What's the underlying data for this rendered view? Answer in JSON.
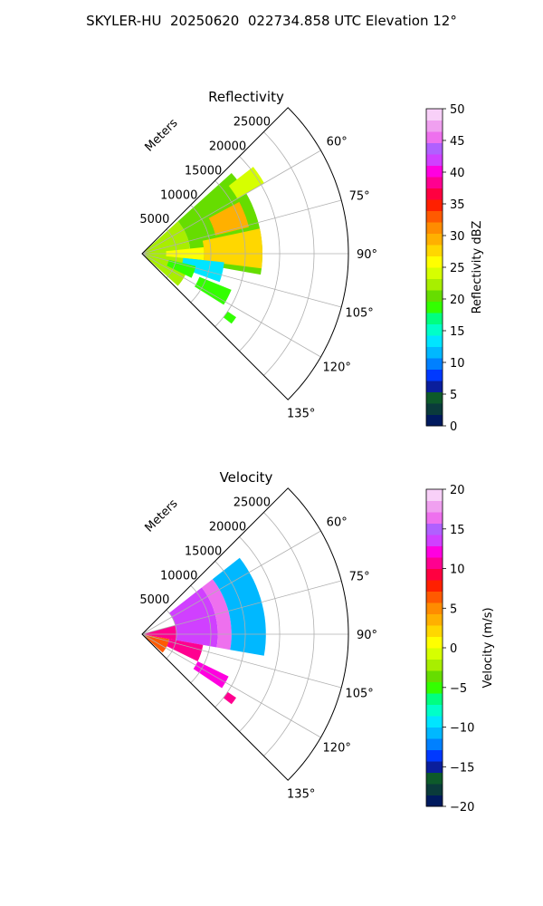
{
  "figure_title": "SKYLER-HU  20250620  022734.858 UTC Elevation 12°",
  "chart_data": [
    {
      "type": "heatmap",
      "projection": "polar-sector",
      "title": "Reflectivity",
      "range_label": "Meters",
      "r_ticks": [
        "5000",
        "10000",
        "15000",
        "20000",
        "25000"
      ],
      "r_tick_values": [
        5000,
        10000,
        15000,
        20000,
        25000
      ],
      "r_max": 30000,
      "theta_ticks": [
        "60°",
        "75°",
        "90°",
        "105°",
        "120°",
        "135°"
      ],
      "theta_tick_values": [
        60,
        75,
        90,
        105,
        120,
        135
      ],
      "theta_range": [
        45,
        135
      ],
      "grid": true,
      "colorbar": {
        "label": "Reflectivity dBZ",
        "ticks": [
          "0",
          "5",
          "10",
          "15",
          "20",
          "25",
          "30",
          "35",
          "40",
          "45",
          "50"
        ],
        "tick_values": [
          0,
          5,
          10,
          15,
          20,
          25,
          30,
          35,
          40,
          45,
          50
        ],
        "range": [
          0,
          50
        ],
        "colors": [
          "#001a5e",
          "#0a3b3b",
          "#0d5a2a",
          "#0a1e9c",
          "#0039ff",
          "#0080ff",
          "#00b8ff",
          "#00e5ff",
          "#00ffc8",
          "#00ff80",
          "#33ff00",
          "#66dd00",
          "#a8ee00",
          "#d6ff00",
          "#ffff00",
          "#ffd700",
          "#ffb000",
          "#ff8c00",
          "#ff5a00",
          "#ff2000",
          "#ff0040",
          "#ff0090",
          "#ff00e0",
          "#d040ff",
          "#b060ff",
          "#ee70ee",
          "#f0a0f0",
          "#f8d0f8"
        ]
      },
      "echo_regions": [
        {
          "theta": [
            48,
            132
          ],
          "r": [
            0,
            7000
          ],
          "value": 22
        },
        {
          "theta": [
            48,
            100
          ],
          "r": [
            7000,
            17500
          ],
          "value": 20
        },
        {
          "theta": [
            52,
            60
          ],
          "r": [
            16000,
            20500
          ],
          "value": 24
        },
        {
          "theta": [
            62,
            76
          ],
          "r": [
            11000,
            16000
          ],
          "value": 29
        },
        {
          "theta": [
            78,
            97
          ],
          "r": [
            9000,
            17500
          ],
          "value": 27
        },
        {
          "theta": [
            84,
            96
          ],
          "r": [
            3500,
            9000
          ],
          "value": 25
        },
        {
          "theta": [
            96,
            110
          ],
          "r": [
            6000,
            12000
          ],
          "value": 13
        },
        {
          "theta": [
            103,
            116
          ],
          "r": [
            4000,
            8000
          ],
          "value": 19
        },
        {
          "theta": [
            112,
            122
          ],
          "r": [
            9000,
            14000
          ],
          "value": 18
        },
        {
          "theta": [
            124,
            128
          ],
          "r": [
            15000,
            16500
          ],
          "value": 18
        }
      ]
    },
    {
      "type": "heatmap",
      "projection": "polar-sector",
      "title": "Velocity",
      "range_label": "Meters",
      "r_ticks": [
        "5000",
        "10000",
        "15000",
        "20000",
        "25000"
      ],
      "r_tick_values": [
        5000,
        10000,
        15000,
        20000,
        25000
      ],
      "r_max": 30000,
      "theta_ticks": [
        "60°",
        "75°",
        "90°",
        "105°",
        "120°",
        "135°"
      ],
      "theta_tick_values": [
        60,
        75,
        90,
        105,
        120,
        135
      ],
      "theta_range": [
        45,
        135
      ],
      "grid": true,
      "colorbar": {
        "label": "Velocity (m/s)",
        "ticks": [
          "−20",
          "−15",
          "−10",
          "−5",
          "0",
          "5",
          "10",
          "15",
          "20"
        ],
        "tick_values": [
          -20,
          -15,
          -10,
          -5,
          0,
          5,
          10,
          15,
          20
        ],
        "range": [
          -20,
          20
        ],
        "colors": [
          "#001a5e",
          "#0a3b3b",
          "#0d5a2a",
          "#0a1e9c",
          "#0039ff",
          "#0080ff",
          "#00b8ff",
          "#00e5ff",
          "#00ffc8",
          "#00ff80",
          "#33ff00",
          "#66dd00",
          "#a8ee00",
          "#d6ff00",
          "#ffff00",
          "#ffd700",
          "#ffb000",
          "#ff8c00",
          "#ff5a00",
          "#ff2000",
          "#ff0040",
          "#ff0090",
          "#ff00e0",
          "#d040ff",
          "#b060ff",
          "#ee70ee",
          "#f0a0f0",
          "#f8d0f8"
        ]
      },
      "echo_regions": [
        {
          "theta": [
            100,
            132
          ],
          "r": [
            0,
            4000
          ],
          "value": 7
        },
        {
          "theta": [
            75,
            100
          ],
          "r": [
            0,
            5000
          ],
          "value": 10
        },
        {
          "theta": [
            52,
            100
          ],
          "r": [
            5000,
            11000
          ],
          "value": 14
        },
        {
          "theta": [
            52,
            100
          ],
          "r": [
            11000,
            13000
          ],
          "value": 16
        },
        {
          "theta": [
            52,
            100
          ],
          "r": [
            13000,
            18000
          ],
          "value": -11
        },
        {
          "theta": [
            100,
            116
          ],
          "r": [
            4000,
            9000
          ],
          "value": 11
        },
        {
          "theta": [
            116,
            124
          ],
          "r": [
            9000,
            14000
          ],
          "value": 12
        },
        {
          "theta": [
            124,
            128
          ],
          "r": [
            15000,
            16500
          ],
          "value": 10
        }
      ]
    }
  ]
}
